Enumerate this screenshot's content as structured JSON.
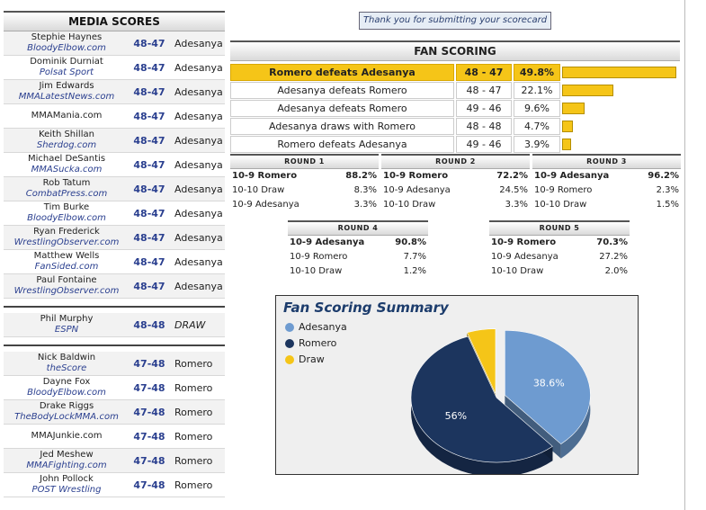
{
  "media": {
    "header": "MEDIA SCORES",
    "group1": [
      {
        "name": "Stephie Haynes",
        "pub": "BloodyElbow.com",
        "score": "48-47",
        "winner": "Adesanya"
      },
      {
        "name": "Dominik Durniat",
        "pub": "Polsat Sport",
        "score": "48-47",
        "winner": "Adesanya"
      },
      {
        "name": "Jim Edwards",
        "pub": "MMALatestNews.com",
        "score": "48-47",
        "winner": "Adesanya"
      },
      {
        "name": "MMAMania.com",
        "pub": "",
        "score": "48-47",
        "winner": "Adesanya"
      },
      {
        "name": "Keith Shillan",
        "pub": "Sherdog.com",
        "score": "48-47",
        "winner": "Adesanya"
      },
      {
        "name": "Michael DeSantis",
        "pub": "MMASucka.com",
        "score": "48-47",
        "winner": "Adesanya"
      },
      {
        "name": "Rob Tatum",
        "pub": "CombatPress.com",
        "score": "48-47",
        "winner": "Adesanya"
      },
      {
        "name": "Tim Burke",
        "pub": "BloodyElbow.com",
        "score": "48-47",
        "winner": "Adesanya"
      },
      {
        "name": "Ryan Frederick",
        "pub": "WrestlingObserver.com",
        "score": "48-47",
        "winner": "Adesanya"
      },
      {
        "name": "Matthew Wells",
        "pub": "FanSided.com",
        "score": "48-47",
        "winner": "Adesanya"
      },
      {
        "name": "Paul Fontaine",
        "pub": "WrestlingObserver.com",
        "score": "48-47",
        "winner": "Adesanya"
      }
    ],
    "group2": [
      {
        "name": "Phil Murphy",
        "pub": "ESPN",
        "score": "48-48",
        "winner": "DRAW"
      }
    ],
    "group3": [
      {
        "name": "Nick Baldwin",
        "pub": "theScore",
        "score": "47-48",
        "winner": "Romero"
      },
      {
        "name": "Dayne Fox",
        "pub": "BloodyElbow.com",
        "score": "47-48",
        "winner": "Romero"
      },
      {
        "name": "Drake Riggs",
        "pub": "TheBodyLockMMA.com",
        "score": "47-48",
        "winner": "Romero"
      },
      {
        "name": "MMAJunkie.com",
        "pub": "",
        "score": "47-48",
        "winner": "Romero"
      },
      {
        "name": "Jed Meshew",
        "pub": "MMAFighting.com",
        "score": "47-48",
        "winner": "Romero"
      },
      {
        "name": "John Pollock",
        "pub": "POST Wrestling",
        "score": "47-48",
        "winner": "Romero"
      }
    ]
  },
  "thanks": "Thank you for submitting your scorecard",
  "fan": {
    "header": "FAN SCORING",
    "rows": [
      {
        "result": "Romero defeats Adesanya",
        "score": "48 - 47",
        "pct": "49.8%",
        "value": 49.8
      },
      {
        "result": "Adesanya defeats Romero",
        "score": "48 - 47",
        "pct": "22.1%",
        "value": 22.1
      },
      {
        "result": "Adesanya defeats Romero",
        "score": "49 - 46",
        "pct": "9.6%",
        "value": 9.6
      },
      {
        "result": "Adesanya draws with Romero",
        "score": "48 - 48",
        "pct": "4.7%",
        "value": 4.7
      },
      {
        "result": "Romero defeats Adesanya",
        "score": "49 - 46",
        "pct": "3.9%",
        "value": 3.9
      }
    ]
  },
  "rounds": [
    {
      "title": "ROUND 1",
      "rows": [
        [
          "10-9 Romero",
          "88.2%"
        ],
        [
          "10-10 Draw",
          "8.3%"
        ],
        [
          "10-9 Adesanya",
          "3.3%"
        ]
      ]
    },
    {
      "title": "ROUND 2",
      "rows": [
        [
          "10-9 Romero",
          "72.2%"
        ],
        [
          "10-9 Adesanya",
          "24.5%"
        ],
        [
          "10-10 Draw",
          "3.3%"
        ]
      ]
    },
    {
      "title": "ROUND 3",
      "rows": [
        [
          "10-9 Adesanya",
          "96.2%"
        ],
        [
          "10-9 Romero",
          "2.3%"
        ],
        [
          "10-10 Draw",
          "1.5%"
        ]
      ]
    },
    {
      "title": "ROUND 4",
      "rows": [
        [
          "10-9 Adesanya",
          "90.8%"
        ],
        [
          "10-9 Romero",
          "7.7%"
        ],
        [
          "10-10 Draw",
          "1.2%"
        ]
      ]
    },
    {
      "title": "ROUND 5",
      "rows": [
        [
          "10-9 Romero",
          "70.3%"
        ],
        [
          "10-9 Adesanya",
          "27.2%"
        ],
        [
          "10-10 Draw",
          "2.0%"
        ]
      ]
    }
  ],
  "chart_data": {
    "type": "pie",
    "title": "Fan Scoring Summary",
    "legend": "top-left",
    "slices": [
      {
        "name": "Adesanya",
        "value": 38.6,
        "label": "38.6%",
        "color": "#6e9bd0"
      },
      {
        "name": "Romero",
        "value": 56,
        "label": "56%",
        "color": "#1c355e"
      },
      {
        "name": "Draw",
        "value": 5.4,
        "label": "",
        "color": "#f5c518"
      }
    ]
  }
}
